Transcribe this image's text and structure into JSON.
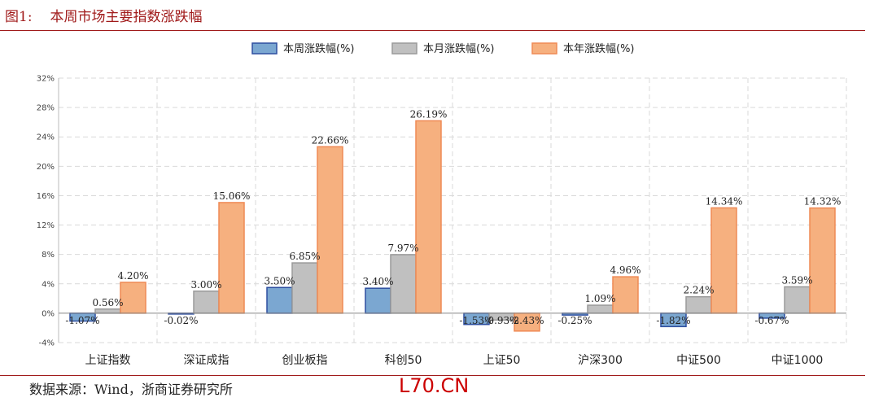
{
  "figure": {
    "label": "图1:",
    "title": "本周市场主要指数涨跌幅",
    "source": "数据来源：Wind，浙商证券研究所",
    "watermark": "L70.CN"
  },
  "colors": {
    "series": [
      "#7ba7d1",
      "#c0c0c0",
      "#f6b07f"
    ],
    "series_stroke": [
      "#2e4fa0",
      "#9a9a9a",
      "#ef8a55"
    ],
    "grid": "#d9d9d9",
    "rule": "#a01a1a"
  },
  "chart_data": {
    "type": "bar",
    "categories": [
      "上证指数",
      "深证成指",
      "创业板指",
      "科创50",
      "上证50",
      "沪深300",
      "中证500",
      "中证1000"
    ],
    "series": [
      {
        "name": "本周涨跌幅(%)",
        "values": [
          -1.07,
          -0.02,
          3.5,
          3.4,
          -1.53,
          -0.25,
          -1.82,
          -0.67
        ],
        "labels": [
          "-1.07%",
          "-0.02%",
          "3.50%",
          "3.40%",
          "-1.53%",
          "-0.25%",
          "-1.82%",
          "-0.67%"
        ]
      },
      {
        "name": "本月涨跌幅(%)",
        "values": [
          0.56,
          3.0,
          6.85,
          7.97,
          -0.93,
          1.09,
          2.24,
          3.59
        ],
        "labels": [
          "0.56%",
          "3.00%",
          "6.85%",
          "7.97%",
          "-0.93%",
          "1.09%",
          "2.24%",
          "3.59%"
        ]
      },
      {
        "name": "本年涨跌幅(%)",
        "values": [
          4.2,
          15.06,
          22.66,
          26.19,
          -2.43,
          4.96,
          14.34,
          14.32
        ],
        "labels": [
          "4.20%",
          "15.06%",
          "22.66%",
          "26.19%",
          "-2.43%",
          "4.96%",
          "14.34%",
          "14.32%"
        ]
      }
    ],
    "ylim": [
      -4,
      32
    ],
    "yticks": [
      -4,
      0,
      4,
      8,
      12,
      16,
      20,
      24,
      28,
      32
    ],
    "ytick_labels": [
      "-4%",
      "0%",
      "4%",
      "8%",
      "12%",
      "16%",
      "20%",
      "24%",
      "28%",
      "32%"
    ],
    "grid": true,
    "legend": "top-center"
  }
}
